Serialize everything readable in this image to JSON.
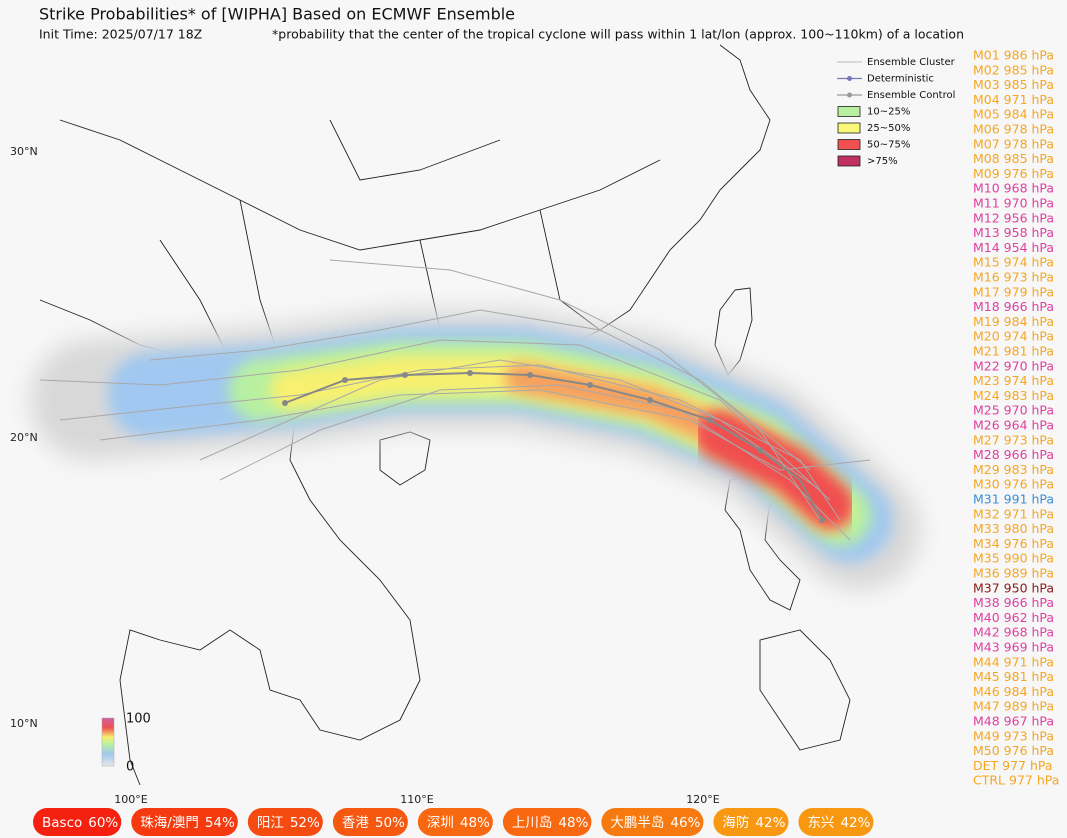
{
  "header": {
    "title": "Strike Probabilities* of [WIPHA] Based on ECMWF Ensemble",
    "init_time": "Init Time: 2025/07/17 18Z",
    "note": "*probability that the center of the tropical cyclone will pass within 1 lat/lon (approx. 100~110km) of a location"
  },
  "legend": [
    {
      "label": "Ensemble Cluster",
      "kind": "line",
      "color": "#bbbbbb"
    },
    {
      "label": "Deterministic",
      "kind": "dot",
      "color": "#7777bb"
    },
    {
      "label": "Ensemble Control",
      "kind": "dot",
      "color": "#999999"
    },
    {
      "label": "10~25%",
      "kind": "box",
      "color": "#b8f0a0"
    },
    {
      "label": "25~50%",
      "kind": "box",
      "color": "#f8f878"
    },
    {
      "label": "50~75%",
      "kind": "box",
      "color": "#f05050"
    },
    {
      "label": ">75%",
      "kind": "box",
      "color": "#c03060"
    }
  ],
  "members": [
    {
      "label": "M01 986 hPa",
      "color": "#f5a623"
    },
    {
      "label": "M02 985 hPa",
      "color": "#f5a623"
    },
    {
      "label": "M03 985 hPa",
      "color": "#f5a623"
    },
    {
      "label": "M04 971 hPa",
      "color": "#f5a623"
    },
    {
      "label": "M05 984 hPa",
      "color": "#f5a623"
    },
    {
      "label": "M06 978 hPa",
      "color": "#f5a623"
    },
    {
      "label": "M07 978 hPa",
      "color": "#f5a623"
    },
    {
      "label": "M08 985 hPa",
      "color": "#f5a623"
    },
    {
      "label": "M09 976 hPa",
      "color": "#f5a623"
    },
    {
      "label": "M10 968 hPa",
      "color": "#e040a0"
    },
    {
      "label": "M11 970 hPa",
      "color": "#e040a0"
    },
    {
      "label": "M12 956 hPa",
      "color": "#e040a0"
    },
    {
      "label": "M13 958 hPa",
      "color": "#e040a0"
    },
    {
      "label": "M14 954 hPa",
      "color": "#e040a0"
    },
    {
      "label": "M15 974 hPa",
      "color": "#f5a623"
    },
    {
      "label": "M16 973 hPa",
      "color": "#f5a623"
    },
    {
      "label": "M17 979 hPa",
      "color": "#f5a623"
    },
    {
      "label": "M18 966 hPa",
      "color": "#e040a0"
    },
    {
      "label": "M19 984 hPa",
      "color": "#f5a623"
    },
    {
      "label": "M20 974 hPa",
      "color": "#f5a623"
    },
    {
      "label": "M21 981 hPa",
      "color": "#f5a623"
    },
    {
      "label": "M22 970 hPa",
      "color": "#e040a0"
    },
    {
      "label": "M23 974 hPa",
      "color": "#f5a623"
    },
    {
      "label": "M24 983 hPa",
      "color": "#f5a623"
    },
    {
      "label": "M25 970 hPa",
      "color": "#e040a0"
    },
    {
      "label": "M26 964 hPa",
      "color": "#e040a0"
    },
    {
      "label": "M27 973 hPa",
      "color": "#f5a623"
    },
    {
      "label": "M28 966 hPa",
      "color": "#e040a0"
    },
    {
      "label": "M29 983 hPa",
      "color": "#f5a623"
    },
    {
      "label": "M30 976 hPa",
      "color": "#f5a623"
    },
    {
      "label": "M31 991 hPa",
      "color": "#3a8fd8"
    },
    {
      "label": "M32 971 hPa",
      "color": "#f5a623"
    },
    {
      "label": "M33 980 hPa",
      "color": "#f5a623"
    },
    {
      "label": "M34 976 hPa",
      "color": "#f5a623"
    },
    {
      "label": "M35 990 hPa",
      "color": "#f5a623"
    },
    {
      "label": "M36 989 hPa",
      "color": "#f5a623"
    },
    {
      "label": "M37 950 hPa",
      "color": "#8b1a1a"
    },
    {
      "label": "M38 966 hPa",
      "color": "#e040a0"
    },
    {
      "label": "M40 962 hPa",
      "color": "#e040a0"
    },
    {
      "label": "M42 968 hPa",
      "color": "#e040a0"
    },
    {
      "label": "M43 969 hPa",
      "color": "#e040a0"
    },
    {
      "label": "M44 971 hPa",
      "color": "#f5a623"
    },
    {
      "label": "M45 981 hPa",
      "color": "#f5a623"
    },
    {
      "label": "M46 984 hPa",
      "color": "#f5a623"
    },
    {
      "label": "M47 989 hPa",
      "color": "#f5a623"
    },
    {
      "label": "M48 967 hPa",
      "color": "#e040a0"
    },
    {
      "label": "M49 973 hPa",
      "color": "#f5a623"
    },
    {
      "label": "M50 976 hPa",
      "color": "#f5a623"
    },
    {
      "label": "DET 977 hPa",
      "color": "#f5a623"
    },
    {
      "label": "CTRL 977 hPa",
      "color": "#f5a623"
    }
  ],
  "lat_labels": [
    "30°N",
    "20°N",
    "10°N"
  ],
  "lon_labels": [
    "100°E",
    "110°E",
    "120°E"
  ],
  "colorbar": {
    "max": "100",
    "min": "0"
  },
  "locations": [
    {
      "name": "Basco",
      "prob": "60%",
      "color": "#f52010"
    },
    {
      "name": "珠海/澳門",
      "prob": "54%",
      "color": "#f53a10"
    },
    {
      "name": "阳江",
      "prob": "52%",
      "color": "#f54a10"
    },
    {
      "name": "香港",
      "prob": "50%",
      "color": "#f65810"
    },
    {
      "name": "深圳",
      "prob": "48%",
      "color": "#f76810"
    },
    {
      "name": "上川岛",
      "prob": "48%",
      "color": "#f76810"
    },
    {
      "name": "大鹏半岛",
      "prob": "46%",
      "color": "#f77a10"
    },
    {
      "name": "海防",
      "prob": "42%",
      "color": "#f89810"
    },
    {
      "name": "东兴",
      "prob": "42%",
      "color": "#f89810"
    }
  ]
}
